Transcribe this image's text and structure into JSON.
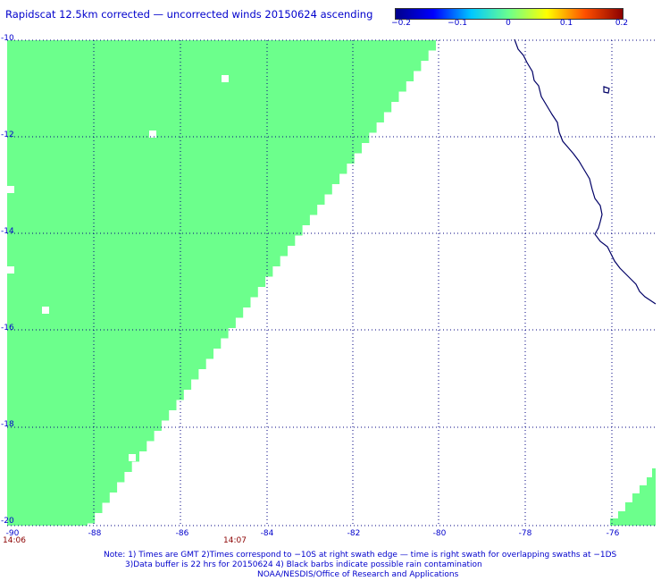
{
  "title": "Rapidscat 12.5km corrected — uncorrected winds 20150624 ascending",
  "colorbar": {
    "colors": [
      "#00008b",
      "#0000ff",
      "#00c8ff",
      "#6cff8c",
      "#ffff00",
      "#ff5000",
      "#8b0000"
    ],
    "labels": [
      "−0.2",
      "−0.1",
      "0",
      "0.1",
      "0.2"
    ]
  },
  "map": {
    "lat_labels": [
      "-10",
      "-12",
      "-14",
      "-16",
      "-18",
      "-20"
    ],
    "lon_labels": [
      "-90",
      "-88",
      "-86",
      "-84",
      "-82",
      "-80",
      "-78",
      "-76"
    ],
    "swath_color": "#6cff8c",
    "coast_color": "#000066"
  },
  "times": [
    "14:06",
    "14:07"
  ],
  "notes": [
    "Note: 1) Times are GMT 2)Times correspond to −10S at right swath edge — time is right swath for overlapping swaths at −1DS",
    "3)Data buffer is 22 hrs for 20150624 4) Black barbs indicate possible rain contamination",
    "NOAA/NESDIS/Office of Research and Applications"
  ]
}
